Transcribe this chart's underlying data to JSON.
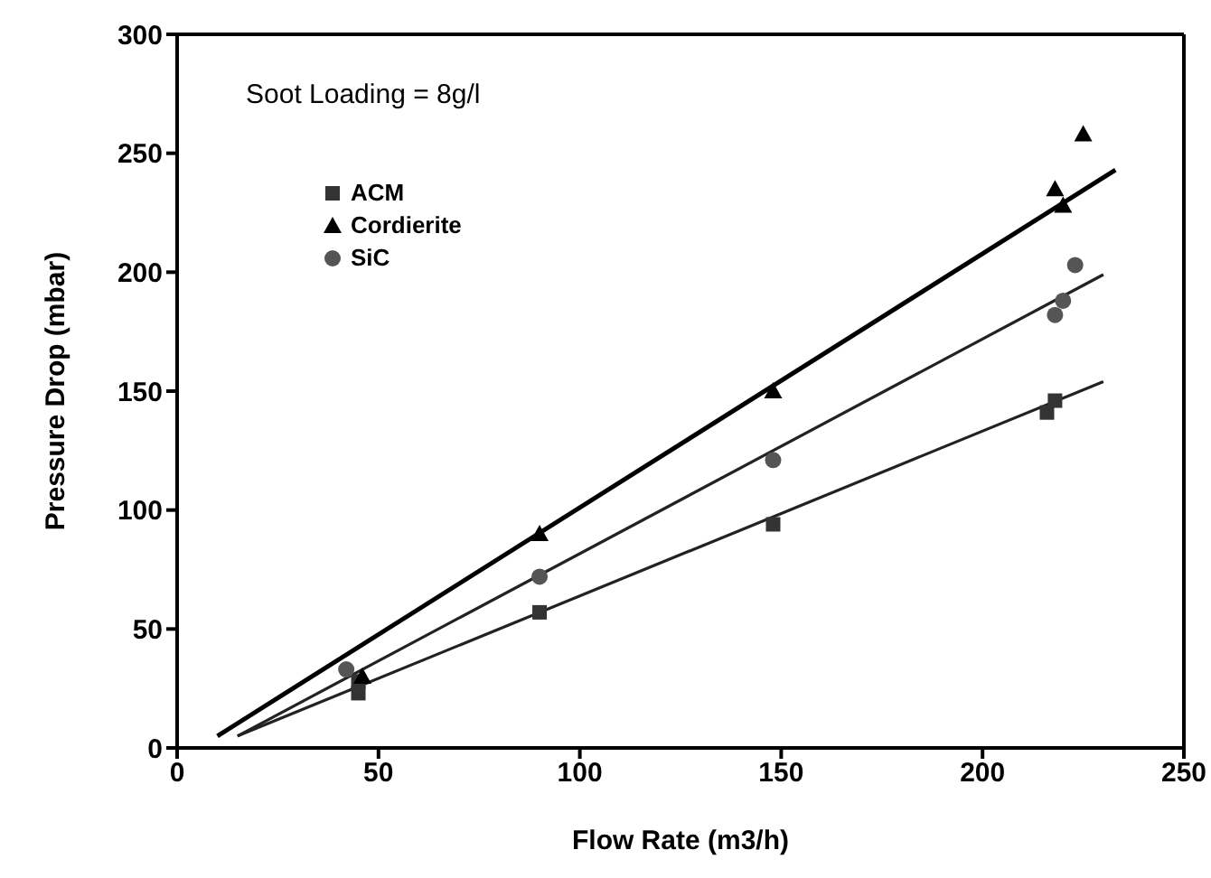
{
  "chart_data": {
    "type": "scatter",
    "xlabel": "Flow Rate (m3/h)",
    "ylabel": "Pressure Drop (mbar)",
    "annotations": [
      "Soot Loading = 8g/l"
    ],
    "xlim": [
      0,
      250
    ],
    "xticks": [
      0,
      50,
      100,
      150,
      200,
      250
    ],
    "ylim": [
      0,
      300
    ],
    "yticks": [
      0,
      50,
      100,
      150,
      200,
      250,
      300
    ],
    "legend": "top left",
    "series": [
      {
        "name": "ACM",
        "type": "scatter",
        "marker": "square",
        "color": "#333333",
        "x": [
          45,
          45,
          90,
          148,
          216,
          218
        ],
        "values": [
          23,
          28,
          57,
          94,
          141,
          146
        ]
      },
      {
        "name": "Cordierite",
        "type": "scatter",
        "marker": "triangle",
        "color": "#000000",
        "x": [
          46,
          90,
          148,
          218,
          220,
          225
        ],
        "values": [
          30,
          90,
          150,
          235,
          228,
          258
        ]
      },
      {
        "name": "SiC",
        "type": "scatter",
        "marker": "circle",
        "color": "#555555",
        "x": [
          42,
          90,
          148,
          218,
          220,
          223
        ],
        "values": [
          33,
          72,
          121,
          182,
          188,
          203
        ]
      },
      {
        "type": "line",
        "marker": "none",
        "color": "#000000",
        "x": [
          10,
          233
        ],
        "values": [
          5,
          243
        ]
      },
      {
        "type": "line",
        "marker": "none",
        "color": "#222222",
        "x": [
          15,
          230
        ],
        "values": [
          5,
          199
        ]
      },
      {
        "type": "line",
        "marker": "none",
        "color": "#222222",
        "x": [
          15,
          230
        ],
        "values": [
          5,
          154
        ]
      }
    ]
  }
}
